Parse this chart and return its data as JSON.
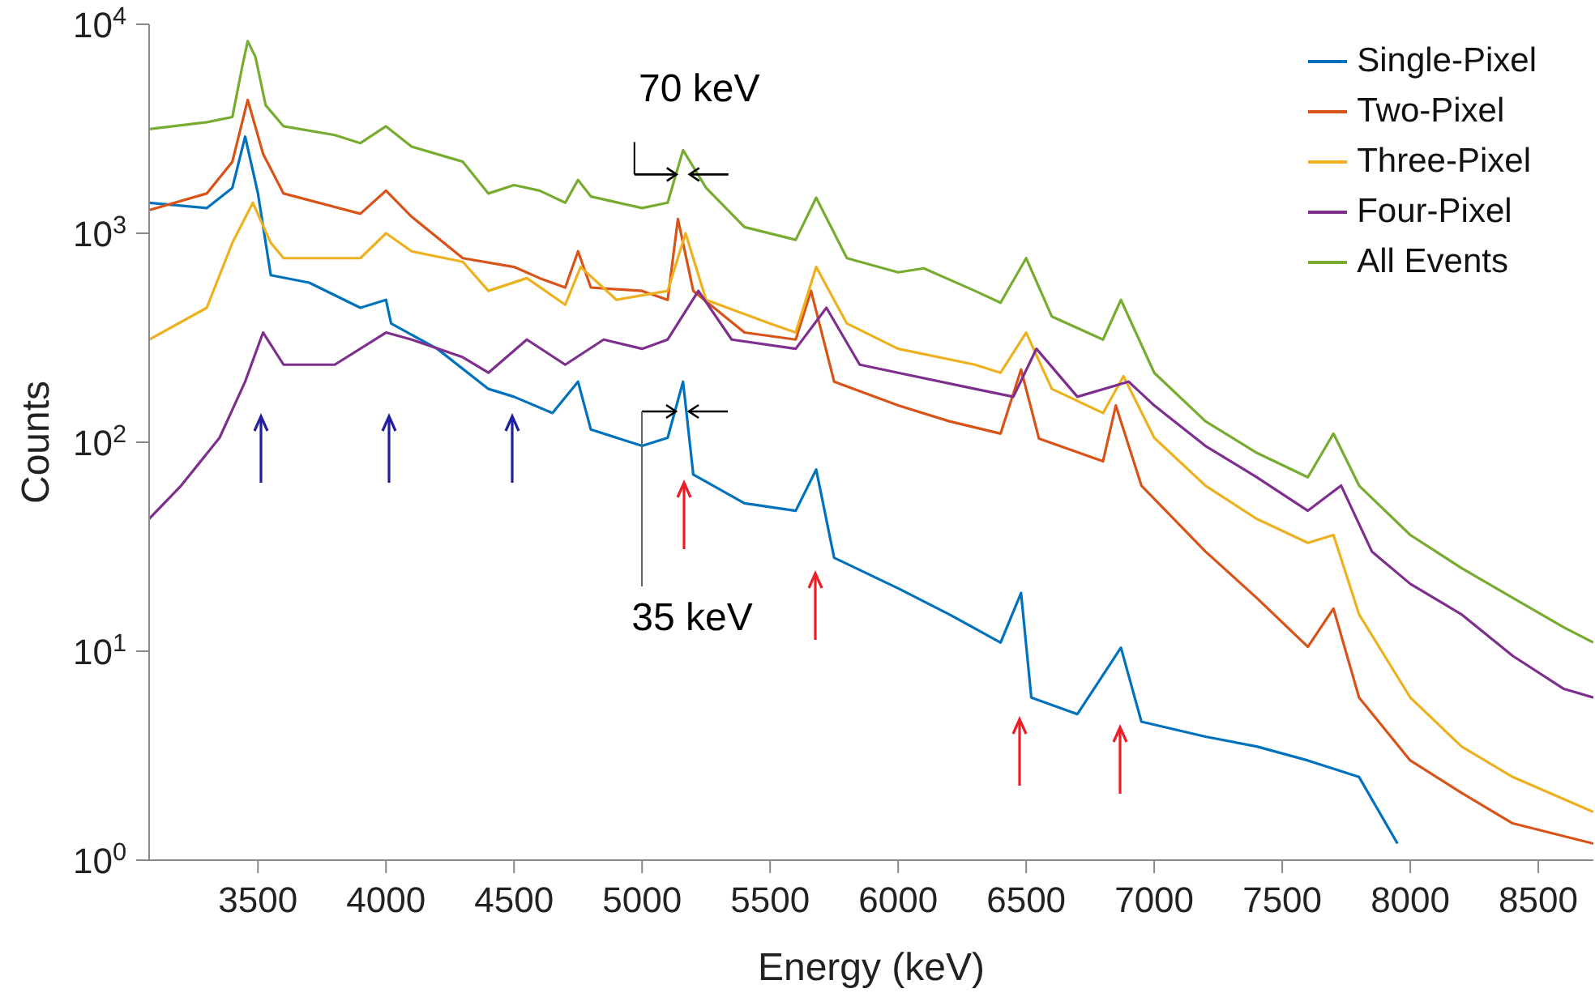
{
  "chart_data": {
    "type": "line",
    "xlabel": "Energy (keV)",
    "ylabel": "Counts",
    "xlim": [
      3075,
      8715
    ],
    "xticks": [
      3500,
      4000,
      4500,
      5000,
      5500,
      6000,
      6500,
      7000,
      7500,
      8000,
      8500
    ],
    "ylim": [
      1,
      10000
    ],
    "yticks": [
      {
        "value": 1,
        "label": "10$^{0}$"
      },
      {
        "value": 10,
        "label": "10$^{1}$"
      },
      {
        "value": 100,
        "label": "10$^{2}$"
      },
      {
        "value": 1000,
        "label": "10$^{3}$"
      },
      {
        "value": 10000,
        "label": "10$^{4}$"
      }
    ],
    "log": "y",
    "grid": false,
    "legend": "top right",
    "marker": "none",
    "line_style": "solid",
    "annotations": [
      {
        "text": "70 keV",
        "x": 5160,
        "y": 2500
      },
      "35 keV"
    ],
    "series": [
      {
        "name": "Single-Pixel",
        "color": "#0072bd",
        "x": [
          3075,
          3300,
          3400,
          3450,
          3500,
          3550,
          3700,
          3900,
          4000,
          4020,
          4200,
          4400,
          4500,
          4650,
          4750,
          4800,
          5000,
          5100,
          5160,
          5200,
          5400,
          5600,
          5680,
          5750,
          6000,
          6200,
          6400,
          6480,
          6520,
          6700,
          6870,
          6950,
          7200,
          7400,
          7600,
          7800,
          7950
        ],
        "values": [
          1400,
          1320,
          1650,
          2900,
          1550,
          630,
          580,
          440,
          480,
          370,
          280,
          180,
          165,
          138,
          195,
          115,
          96,
          105,
          195,
          70,
          51,
          47,
          74,
          28,
          20,
          15,
          11,
          19,
          6,
          5,
          10.4,
          4.6,
          3.9,
          3.5,
          3,
          2.5,
          1.2
        ]
      },
      {
        "name": "Two-Pixel",
        "color": "#d95319",
        "x": [
          3075,
          3300,
          3400,
          3460,
          3520,
          3600,
          3900,
          4000,
          4100,
          4300,
          4500,
          4600,
          4700,
          4750,
          4800,
          5000,
          5100,
          5140,
          5200,
          5400,
          5600,
          5660,
          5750,
          6000,
          6200,
          6400,
          6480,
          6550,
          6800,
          6850,
          6950,
          7200,
          7400,
          7600,
          7700,
          7800,
          8000,
          8200,
          8400,
          8715
        ],
        "values": [
          1290,
          1550,
          2200,
          4350,
          2400,
          1550,
          1240,
          1600,
          1200,
          760,
          690,
          610,
          550,
          820,
          550,
          530,
          480,
          1170,
          530,
          335,
          310,
          530,
          195,
          150,
          126,
          110,
          223,
          104,
          81,
          150,
          62,
          30,
          18,
          10.5,
          16,
          6,
          3,
          2.1,
          1.5,
          1.2
        ]
      },
      {
        "name": "Three-Pixel",
        "color": "#edb120",
        "x": [
          3075,
          3300,
          3400,
          3480,
          3550,
          3600,
          3900,
          4000,
          4100,
          4300,
          4400,
          4550,
          4700,
          4760,
          4900,
          5100,
          5170,
          5250,
          5500,
          5600,
          5680,
          5800,
          6000,
          6300,
          6400,
          6500,
          6600,
          6800,
          6880,
          7000,
          7200,
          7400,
          7600,
          7700,
          7800,
          8000,
          8200,
          8400,
          8715
        ],
        "values": [
          310,
          440,
          900,
          1400,
          900,
          760,
          760,
          1000,
          820,
          730,
          530,
          610,
          455,
          690,
          480,
          530,
          1000,
          480,
          370,
          335,
          690,
          370,
          280,
          235,
          215,
          335,
          180,
          138,
          207,
          105,
          62,
          43,
          33,
          36,
          15,
          6,
          3.5,
          2.5,
          1.7
        ]
      },
      {
        "name": "Four-Pixel",
        "color": "#7e2f8e",
        "x": [
          3075,
          3200,
          3350,
          3450,
          3520,
          3600,
          3800,
          4000,
          4100,
          4300,
          4400,
          4550,
          4700,
          4850,
          5000,
          5100,
          5220,
          5350,
          5600,
          5720,
          5850,
          6000,
          6300,
          6450,
          6540,
          6700,
          6900,
          7000,
          7200,
          7400,
          7600,
          7730,
          7850,
          8000,
          8200,
          8400,
          8600,
          8715
        ],
        "values": [
          43,
          62,
          105,
          195,
          335,
          235,
          235,
          335,
          310,
          255,
          215,
          310,
          235,
          310,
          280,
          310,
          530,
          310,
          280,
          440,
          235,
          215,
          180,
          165,
          280,
          165,
          195,
          150,
          96,
          68,
          47,
          62,
          30,
          21,
          15,
          9.5,
          6.6,
          6
        ]
      },
      {
        "name": "All Events",
        "color": "#77ac30",
        "x": [
          3075,
          3300,
          3400,
          3440,
          3460,
          3490,
          3530,
          3600,
          3800,
          3900,
          4000,
          4100,
          4300,
          4400,
          4500,
          4600,
          4700,
          4750,
          4800,
          5000,
          5100,
          5160,
          5250,
          5400,
          5600,
          5680,
          5800,
          6000,
          6100,
          6300,
          6400,
          6500,
          6600,
          6800,
          6870,
          7000,
          7200,
          7400,
          7600,
          7700,
          7800,
          8000,
          8200,
          8400,
          8600,
          8715
        ],
        "values": [
          3150,
          3400,
          3600,
          6400,
          8300,
          7000,
          4100,
          3250,
          2950,
          2700,
          3250,
          2600,
          2200,
          1550,
          1700,
          1600,
          1400,
          1800,
          1500,
          1320,
          1400,
          2500,
          1650,
          1070,
          930,
          1480,
          760,
          650,
          680,
          530,
          465,
          760,
          400,
          310,
          480,
          215,
          126,
          89,
          68,
          110,
          62,
          36,
          25,
          18,
          13,
          11
        ]
      }
    ]
  }
}
